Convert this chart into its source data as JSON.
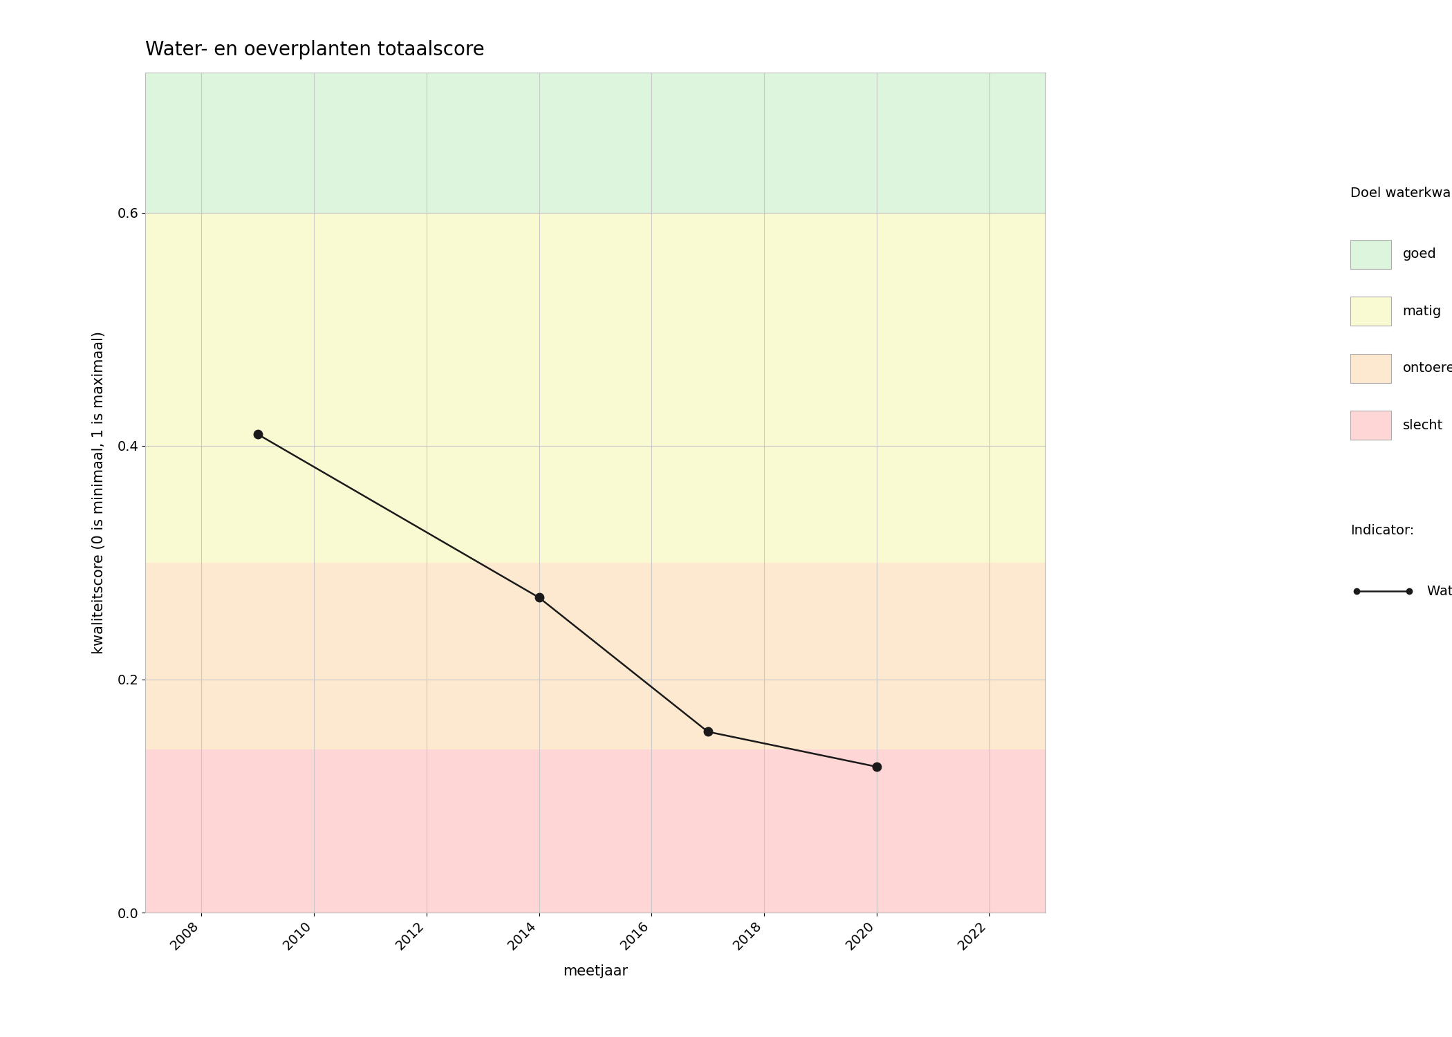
{
  "title": "Water- en oeverplanten totaalscore",
  "xlabel": "meetjaar",
  "ylabel": "kwaliteitscore (0 is minimaal, 1 is maximaal)",
  "xlim": [
    2007,
    2023
  ],
  "ylim": [
    0.0,
    0.72
  ],
  "xticks": [
    2008,
    2010,
    2012,
    2014,
    2016,
    2018,
    2020,
    2022
  ],
  "yticks": [
    0.0,
    0.2,
    0.4,
    0.6
  ],
  "x_data": [
    2009,
    2014,
    2017,
    2020
  ],
  "y_data": [
    0.41,
    0.27,
    0.155,
    0.125
  ],
  "bg_bands": [
    {
      "ymin": 0.0,
      "ymax": 0.14,
      "color": "#ffd6d6",
      "label": "slecht"
    },
    {
      "ymin": 0.14,
      "ymax": 0.3,
      "color": "#fde8d0",
      "label": "ontoereikend"
    },
    {
      "ymin": 0.3,
      "ymax": 0.6,
      "color": "#fafad2",
      "label": "matig"
    },
    {
      "ymin": 0.6,
      "ymax": 0.72,
      "color": "#dcf5dc",
      "label": "goed"
    }
  ],
  "legend_quality_colors": [
    "#dcf5dc",
    "#fafad2",
    "#fde8d0",
    "#ffd6d6"
  ],
  "legend_quality_labels": [
    "goed",
    "matig",
    "ontoereikend",
    "slecht"
  ],
  "legend_title_quality": "Doel waterkwaliteit:",
  "legend_title_indicator": "Indicator:",
  "indicator_label": "Water- en oeverplanten",
  "line_color": "#1a1a1a",
  "marker": "o",
  "markersize": 9,
  "linewidth": 1.8,
  "figure_bg": "#ffffff",
  "axes_bg": "#ffffff",
  "grid_color": "#c8c8c8",
  "title_fontsize": 20,
  "label_fontsize": 15,
  "tick_fontsize": 14,
  "legend_fontsize": 14
}
